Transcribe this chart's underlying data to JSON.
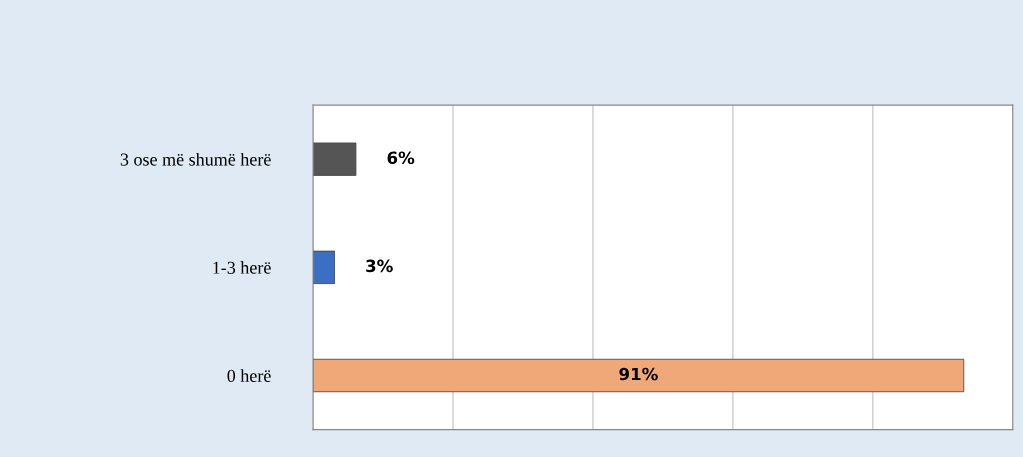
{
  "chart_data": {
    "type": "bar",
    "orientation": "horizontal",
    "categories": [
      "3 ose më shumë herë",
      "1-3 herë",
      "0 herë"
    ],
    "values": [
      6,
      3,
      91
    ],
    "colors": [
      "#555555",
      "#3a6fc4",
      "#f0a878"
    ],
    "value_labels": [
      "6%",
      "3%",
      "91%"
    ],
    "tick_labels": "y",
    "grid": "x",
    "legend": false
  }
}
